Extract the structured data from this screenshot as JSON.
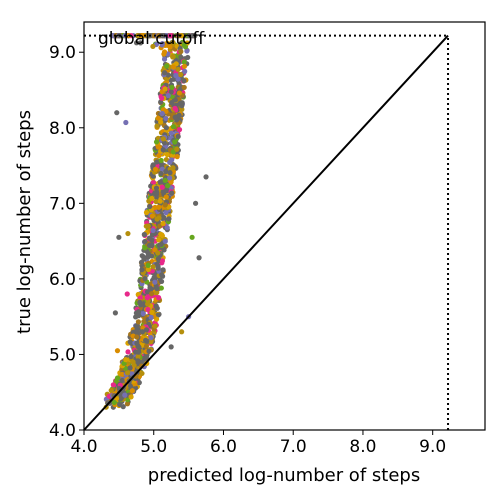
{
  "chart_data": {
    "type": "scatter",
    "title": "",
    "xlabel": "predicted log-number of steps",
    "ylabel": "true log-number of steps",
    "xlim": [
      4.0,
      9.75
    ],
    "ylim": [
      4.0,
      9.4
    ],
    "xticks": [
      "4.0",
      "5.0",
      "6.0",
      "7.0",
      "8.0",
      "9.0"
    ],
    "yticks": [
      "4.0",
      "5.0",
      "6.0",
      "7.0",
      "8.0",
      "9.0"
    ],
    "grid": false,
    "legend": "none",
    "global_cutoff": 9.22,
    "annotations": [
      {
        "text": "global cutoff",
        "x": 4.18,
        "y": 9.3
      }
    ],
    "reference_line": {
      "x": [
        4.0,
        9.22
      ],
      "y": [
        4.0,
        9.22
      ]
    },
    "cutoff_lines": {
      "horizontal": {
        "x": [
          4.0,
          9.22
        ],
        "y": 9.22
      },
      "vertical": {
        "x": 9.22,
        "y": [
          4.0,
          9.22
        ]
      }
    },
    "point_colors": [
      "#666666",
      "#666666",
      "#666666",
      "#666666",
      "#d9a100",
      "#d98c00",
      "#b58f0d",
      "#7570b3",
      "#66a61e",
      "#e7298a",
      "#a6761d"
    ],
    "series": [
      {
        "name": "",
        "points": [
          [
            4.45,
            4.35
          ],
          [
            4.5,
            4.45
          ],
          [
            4.55,
            4.5
          ],
          [
            4.6,
            4.62
          ],
          [
            4.65,
            4.7
          ],
          [
            4.7,
            4.8
          ],
          [
            4.72,
            4.9
          ],
          [
            4.78,
            5.0
          ],
          [
            4.82,
            5.15
          ],
          [
            4.85,
            5.3
          ],
          [
            4.9,
            5.5
          ],
          [
            4.92,
            5.7
          ],
          [
            4.95,
            5.9
          ],
          [
            4.98,
            6.1
          ],
          [
            5.0,
            6.3
          ],
          [
            5.02,
            6.5
          ],
          [
            5.05,
            6.7
          ],
          [
            5.07,
            6.9
          ],
          [
            5.1,
            7.1
          ],
          [
            5.12,
            7.3
          ],
          [
            5.15,
            7.5
          ],
          [
            5.18,
            7.7
          ],
          [
            5.2,
            7.9
          ],
          [
            5.22,
            8.1
          ],
          [
            5.25,
            8.3
          ],
          [
            5.27,
            8.5
          ],
          [
            5.3,
            8.7
          ],
          [
            5.32,
            8.9
          ],
          [
            5.3,
            9.1
          ],
          [
            4.47,
            8.2
          ],
          [
            4.6,
            8.07
          ],
          [
            4.5,
            6.55
          ],
          [
            4.63,
            6.6
          ],
          [
            4.45,
            5.55
          ],
          [
            4.48,
            5.05
          ],
          [
            4.55,
            4.9
          ],
          [
            4.63,
            5.15
          ],
          [
            4.62,
            5.8
          ],
          [
            5.75,
            7.35
          ],
          [
            5.55,
            6.55
          ],
          [
            5.65,
            6.28
          ],
          [
            5.5,
            5.5
          ],
          [
            5.6,
            7.0
          ],
          [
            5.4,
            5.3
          ],
          [
            5.25,
            5.1
          ]
        ]
      }
    ]
  }
}
